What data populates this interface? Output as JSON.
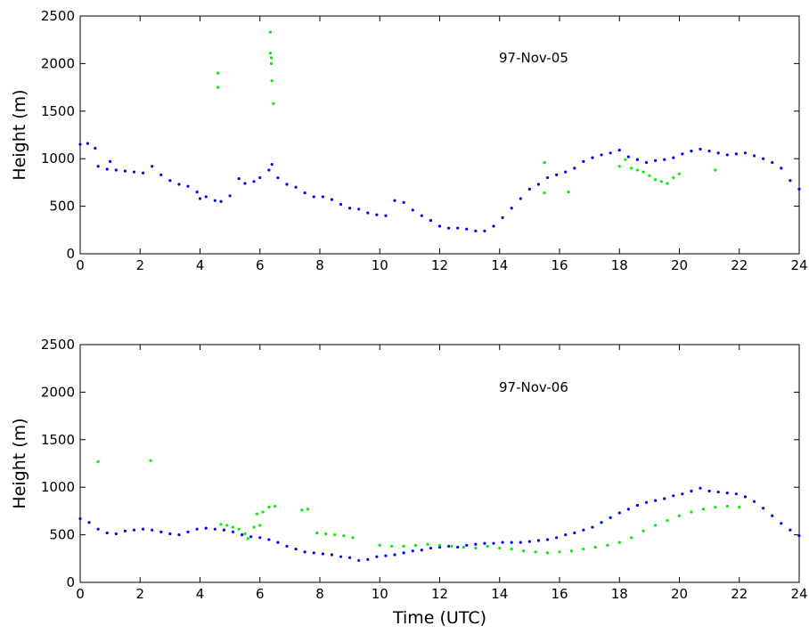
{
  "chart_data": [
    {
      "type": "scatter",
      "annotation": "97-Nov-05",
      "xlabel": "",
      "ylabel": "Height (m)",
      "xlim": [
        0,
        24
      ],
      "ylim": [
        0,
        2500
      ],
      "xticks": [
        0,
        2,
        4,
        6,
        8,
        10,
        12,
        14,
        16,
        18,
        20,
        22,
        24
      ],
      "yticks": [
        0,
        500,
        1000,
        1500,
        2000,
        2500
      ],
      "series": [
        {
          "color": "#0000ff",
          "points": [
            [
              0.0,
              1150
            ],
            [
              0.25,
              1160
            ],
            [
              0.5,
              1110
            ],
            [
              0.6,
              920
            ],
            [
              0.9,
              890
            ],
            [
              1.0,
              970
            ],
            [
              1.2,
              880
            ],
            [
              1.5,
              870
            ],
            [
              1.8,
              860
            ],
            [
              2.1,
              850
            ],
            [
              2.4,
              920
            ],
            [
              2.7,
              830
            ],
            [
              3.0,
              770
            ],
            [
              3.3,
              730
            ],
            [
              3.6,
              710
            ],
            [
              3.9,
              650
            ],
            [
              4.0,
              580
            ],
            [
              4.2,
              600
            ],
            [
              4.5,
              560
            ],
            [
              4.7,
              550
            ],
            [
              5.0,
              610
            ],
            [
              5.3,
              790
            ],
            [
              5.5,
              740
            ],
            [
              5.8,
              760
            ],
            [
              6.0,
              800
            ],
            [
              6.3,
              880
            ],
            [
              6.4,
              940
            ],
            [
              6.6,
              800
            ],
            [
              6.9,
              730
            ],
            [
              7.2,
              700
            ],
            [
              7.5,
              640
            ],
            [
              7.8,
              600
            ],
            [
              8.1,
              600
            ],
            [
              8.4,
              570
            ],
            [
              8.7,
              520
            ],
            [
              9.0,
              480
            ],
            [
              9.3,
              470
            ],
            [
              9.6,
              430
            ],
            [
              9.9,
              410
            ],
            [
              10.2,
              400
            ],
            [
              10.5,
              560
            ],
            [
              10.8,
              540
            ],
            [
              11.1,
              460
            ],
            [
              11.4,
              400
            ],
            [
              11.7,
              350
            ],
            [
              12.0,
              290
            ],
            [
              12.3,
              270
            ],
            [
              12.6,
              270
            ],
            [
              12.9,
              260
            ],
            [
              13.2,
              240
            ],
            [
              13.5,
              240
            ],
            [
              13.8,
              290
            ],
            [
              14.1,
              380
            ],
            [
              14.4,
              480
            ],
            [
              14.7,
              580
            ],
            [
              15.0,
              680
            ],
            [
              15.3,
              730
            ],
            [
              15.6,
              800
            ],
            [
              15.9,
              830
            ],
            [
              16.2,
              860
            ],
            [
              16.5,
              900
            ],
            [
              16.8,
              970
            ],
            [
              17.1,
              1010
            ],
            [
              17.4,
              1040
            ],
            [
              17.7,
              1060
            ],
            [
              18.0,
              1090
            ],
            [
              18.3,
              1020
            ],
            [
              18.6,
              990
            ],
            [
              18.9,
              960
            ],
            [
              19.2,
              980
            ],
            [
              19.5,
              990
            ],
            [
              19.8,
              1010
            ],
            [
              20.1,
              1050
            ],
            [
              20.4,
              1080
            ],
            [
              20.7,
              1100
            ],
            [
              21.0,
              1080
            ],
            [
              21.3,
              1060
            ],
            [
              21.6,
              1040
            ],
            [
              21.9,
              1050
            ],
            [
              22.2,
              1060
            ],
            [
              22.5,
              1030
            ],
            [
              22.8,
              1000
            ],
            [
              23.1,
              960
            ],
            [
              23.4,
              900
            ],
            [
              23.7,
              770
            ],
            [
              24.0,
              680
            ]
          ]
        },
        {
          "color": "#00ee00",
          "points": [
            [
              4.6,
              1900
            ],
            [
              4.6,
              1750
            ],
            [
              6.35,
              2330
            ],
            [
              6.35,
              2110
            ],
            [
              6.38,
              2060
            ],
            [
              6.38,
              2000
            ],
            [
              6.4,
              1820
            ],
            [
              6.45,
              1580
            ],
            [
              15.5,
              960
            ],
            [
              15.5,
              640
            ],
            [
              16.3,
              650
            ],
            [
              18.0,
              920
            ],
            [
              18.2,
              990
            ],
            [
              18.4,
              900
            ],
            [
              18.6,
              880
            ],
            [
              18.8,
              860
            ],
            [
              19.0,
              820
            ],
            [
              19.2,
              780
            ],
            [
              19.4,
              760
            ],
            [
              19.6,
              740
            ],
            [
              19.8,
              800
            ],
            [
              20.0,
              840
            ],
            [
              21.2,
              880
            ]
          ]
        }
      ]
    },
    {
      "type": "scatter",
      "annotation": "97-Nov-06",
      "xlabel": "Time (UTC)",
      "ylabel": "Height (m)",
      "xlim": [
        0,
        24
      ],
      "ylim": [
        0,
        2500
      ],
      "xticks": [
        0,
        2,
        4,
        6,
        8,
        10,
        12,
        14,
        16,
        18,
        20,
        22,
        24
      ],
      "yticks": [
        0,
        500,
        1000,
        1500,
        2000,
        2500
      ],
      "series": [
        {
          "color": "#0000ff",
          "points": [
            [
              0.0,
              670
            ],
            [
              0.3,
              630
            ],
            [
              0.6,
              560
            ],
            [
              0.9,
              520
            ],
            [
              1.2,
              510
            ],
            [
              1.5,
              540
            ],
            [
              1.8,
              550
            ],
            [
              2.1,
              560
            ],
            [
              2.4,
              550
            ],
            [
              2.7,
              530
            ],
            [
              3.0,
              510
            ],
            [
              3.3,
              500
            ],
            [
              3.6,
              530
            ],
            [
              3.9,
              560
            ],
            [
              4.2,
              570
            ],
            [
              4.5,
              560
            ],
            [
              4.8,
              550
            ],
            [
              5.1,
              530
            ],
            [
              5.4,
              500
            ],
            [
              5.7,
              480
            ],
            [
              6.0,
              470
            ],
            [
              6.3,
              450
            ],
            [
              6.6,
              420
            ],
            [
              6.9,
              380
            ],
            [
              7.2,
              350
            ],
            [
              7.5,
              320
            ],
            [
              7.8,
              310
            ],
            [
              8.1,
              300
            ],
            [
              8.4,
              290
            ],
            [
              8.7,
              270
            ],
            [
              9.0,
              260
            ],
            [
              9.3,
              230
            ],
            [
              9.6,
              240
            ],
            [
              9.9,
              270
            ],
            [
              10.2,
              280
            ],
            [
              10.5,
              290
            ],
            [
              10.8,
              310
            ],
            [
              11.1,
              330
            ],
            [
              11.4,
              340
            ],
            [
              11.7,
              360
            ],
            [
              12.0,
              370
            ],
            [
              12.3,
              380
            ],
            [
              12.6,
              370
            ],
            [
              12.9,
              390
            ],
            [
              13.2,
              400
            ],
            [
              13.5,
              410
            ],
            [
              13.8,
              410
            ],
            [
              14.1,
              420
            ],
            [
              14.4,
              420
            ],
            [
              14.7,
              420
            ],
            [
              15.0,
              430
            ],
            [
              15.3,
              440
            ],
            [
              15.6,
              450
            ],
            [
              15.9,
              470
            ],
            [
              16.2,
              500
            ],
            [
              16.5,
              520
            ],
            [
              16.8,
              550
            ],
            [
              17.1,
              580
            ],
            [
              17.4,
              630
            ],
            [
              17.7,
              680
            ],
            [
              18.0,
              730
            ],
            [
              18.3,
              770
            ],
            [
              18.6,
              810
            ],
            [
              18.9,
              840
            ],
            [
              19.2,
              860
            ],
            [
              19.5,
              880
            ],
            [
              19.8,
              910
            ],
            [
              20.1,
              930
            ],
            [
              20.4,
              960
            ],
            [
              20.7,
              990
            ],
            [
              21.0,
              960
            ],
            [
              21.3,
              950
            ],
            [
              21.6,
              940
            ],
            [
              21.9,
              930
            ],
            [
              22.2,
              900
            ],
            [
              22.5,
              850
            ],
            [
              22.8,
              780
            ],
            [
              23.1,
              700
            ],
            [
              23.4,
              620
            ],
            [
              23.7,
              550
            ],
            [
              24.0,
              490
            ]
          ]
        },
        {
          "color": "#00ee00",
          "points": [
            [
              0.6,
              1270
            ],
            [
              2.35,
              1280
            ],
            [
              4.7,
              610
            ],
            [
              4.9,
              600
            ],
            [
              5.1,
              580
            ],
            [
              5.3,
              560
            ],
            [
              5.5,
              510
            ],
            [
              5.6,
              460
            ],
            [
              5.9,
              720
            ],
            [
              6.1,
              740
            ],
            [
              6.3,
              790
            ],
            [
              6.5,
              800
            ],
            [
              5.8,
              580
            ],
            [
              6.0,
              600
            ],
            [
              7.4,
              760
            ],
            [
              7.6,
              770
            ],
            [
              7.9,
              520
            ],
            [
              8.2,
              510
            ],
            [
              8.5,
              500
            ],
            [
              8.8,
              490
            ],
            [
              9.1,
              470
            ],
            [
              10.0,
              390
            ],
            [
              10.4,
              380
            ],
            [
              10.8,
              380
            ],
            [
              11.2,
              390
            ],
            [
              11.6,
              400
            ],
            [
              12.0,
              390
            ],
            [
              12.4,
              380
            ],
            [
              12.8,
              370
            ],
            [
              13.2,
              360
            ],
            [
              13.6,
              380
            ],
            [
              14.0,
              360
            ],
            [
              14.4,
              350
            ],
            [
              14.8,
              330
            ],
            [
              15.2,
              320
            ],
            [
              15.6,
              310
            ],
            [
              16.0,
              320
            ],
            [
              16.4,
              330
            ],
            [
              16.8,
              350
            ],
            [
              17.2,
              370
            ],
            [
              17.6,
              390
            ],
            [
              18.0,
              420
            ],
            [
              18.4,
              470
            ],
            [
              18.8,
              540
            ],
            [
              19.2,
              600
            ],
            [
              19.6,
              650
            ],
            [
              20.0,
              700
            ],
            [
              20.4,
              740
            ],
            [
              20.8,
              770
            ],
            [
              21.2,
              790
            ],
            [
              21.6,
              800
            ],
            [
              22.0,
              790
            ]
          ]
        }
      ]
    }
  ]
}
